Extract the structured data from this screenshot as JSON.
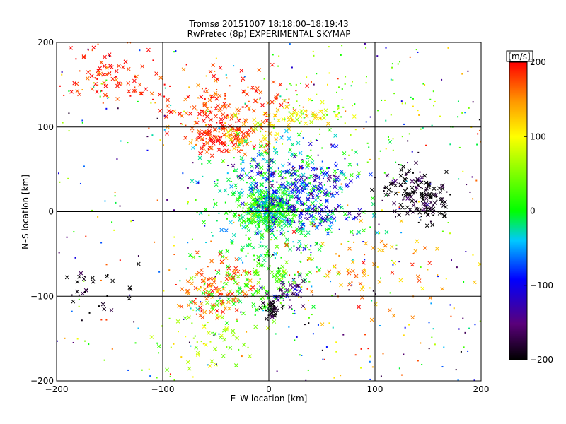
{
  "chart_data": {
    "type": "scatter",
    "title": "Tromsø 20151007 18:18:00–18:19:43",
    "subtitle": "RwPretec (8p) EXPERIMENTAL SKYMAP",
    "xlabel": "E–W location [km]",
    "ylabel": "N–S location [km]",
    "xlim": [
      -200,
      200
    ],
    "ylim": [
      -200,
      200
    ],
    "x_ticks": [
      -200,
      -100,
      0,
      100,
      200
    ],
    "y_ticks": [
      -200,
      -100,
      0,
      100,
      200
    ],
    "x_tick_labels": [
      "−200",
      "−100",
      "0",
      "100",
      "200"
    ],
    "y_tick_labels": [
      "−200",
      "−100",
      "0",
      "100",
      "200"
    ],
    "grid": true,
    "markers": [
      "cross",
      "dot"
    ],
    "colorbar": {
      "label": "[m/s]",
      "range": [
        -200,
        200
      ],
      "ticks": [
        200,
        100,
        0,
        -100,
        -200
      ],
      "tick_labels": [
        "200",
        "100",
        "0",
        "−100",
        "−200"
      ],
      "colors": [
        "#000000",
        "#5a007a",
        "#0000ff",
        "#00c8ff",
        "#00ff00",
        "#ffff00",
        "#ff9600",
        "#ff0000"
      ]
    },
    "clusters": [
      {
        "center": [
          -150,
          160
        ],
        "spread": [
          22,
          18
        ],
        "velocity": 195,
        "count": 90,
        "marker": "cross"
      },
      {
        "center": [
          -40,
          125
        ],
        "spread": [
          30,
          20
        ],
        "velocity": 180,
        "count": 180,
        "marker": "cross"
      },
      {
        "center": [
          -45,
          88
        ],
        "spread": [
          18,
          8
        ],
        "velocity": 190,
        "count": 110,
        "marker": "cross"
      },
      {
        "center": [
          -10,
          90
        ],
        "spread": [
          18,
          10
        ],
        "velocity": 110,
        "count": 40,
        "marker": "cross"
      },
      {
        "center": [
          30,
          112
        ],
        "spread": [
          20,
          8
        ],
        "velocity": 100,
        "count": 60,
        "marker": "cross"
      },
      {
        "center": [
          70,
          130
        ],
        "spread": [
          40,
          40
        ],
        "velocity": 40,
        "count": 90,
        "marker": "dot"
      },
      {
        "center": [
          10,
          15
        ],
        "spread": [
          35,
          35
        ],
        "velocity": -10,
        "count": 420,
        "marker": "cross"
      },
      {
        "center": [
          0,
          0
        ],
        "spread": [
          12,
          12
        ],
        "velocity": 5,
        "count": 260,
        "marker": "cross"
      },
      {
        "center": [
          30,
          20
        ],
        "spread": [
          25,
          25
        ],
        "velocity": -110,
        "count": 260,
        "marker": "cross"
      },
      {
        "center": [
          135,
          30
        ],
        "spread": [
          15,
          12
        ],
        "velocity": -195,
        "count": 80,
        "marker": "cross"
      },
      {
        "center": [
          148,
          10
        ],
        "spread": [
          12,
          12
        ],
        "velocity": -200,
        "count": 90,
        "marker": "cross"
      },
      {
        "center": [
          -50,
          -95
        ],
        "spread": [
          20,
          18
        ],
        "velocity": 170,
        "count": 110,
        "marker": "cross"
      },
      {
        "center": [
          -10,
          -80
        ],
        "spread": [
          30,
          25
        ],
        "velocity": 20,
        "count": 170,
        "marker": "cross"
      },
      {
        "center": [
          20,
          -95
        ],
        "spread": [
          10,
          10
        ],
        "velocity": -150,
        "count": 45,
        "marker": "cross"
      },
      {
        "center": [
          2,
          -115
        ],
        "spread": [
          5,
          5
        ],
        "velocity": -200,
        "count": 35,
        "marker": "cross"
      },
      {
        "center": [
          -170,
          -90
        ],
        "spread": [
          20,
          15
        ],
        "velocity": -200,
        "count": 35,
        "marker": "cross"
      },
      {
        "center": [
          -60,
          -150
        ],
        "spread": [
          25,
          20
        ],
        "velocity": 60,
        "count": 60,
        "marker": "cross"
      },
      {
        "center": [
          90,
          -70
        ],
        "spread": [
          40,
          30
        ],
        "velocity": 150,
        "count": 80,
        "marker": "cross"
      },
      {
        "center": [
          0,
          0
        ],
        "spread": [
          200,
          200
        ],
        "velocity": 0,
        "count": 420,
        "marker": "dot",
        "uniform": true
      }
    ]
  }
}
